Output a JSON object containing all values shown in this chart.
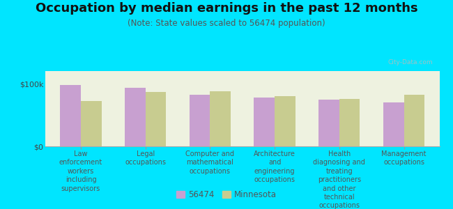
{
  "title": "Occupation by median earnings in the past 12 months",
  "subtitle": "(Note: State values scaled to 56474 population)",
  "categories": [
    "Law\nenforcement\nworkers\nincluding\nsupervisors",
    "Legal\noccupations",
    "Computer and\nmathematical\noccupations",
    "Architecture\nand\nengineering\noccupations",
    "Health\ndiagnosing and\ntreating\npractitioners\nand other\ntechnical\noccupations",
    "Management\noccupations"
  ],
  "values_56474": [
    98000,
    93000,
    82000,
    78000,
    74000,
    70000
  ],
  "values_minnesota": [
    72000,
    87000,
    88000,
    80000,
    76000,
    82000
  ],
  "color_56474": "#c8a0d0",
  "color_minnesota": "#c8cc90",
  "background_outer": "#00e5ff",
  "background_plot": "#eef2e0",
  "ytick_labels": [
    "$0",
    "$100k"
  ],
  "ymax": 120000,
  "legend_label_1": "56474",
  "legend_label_2": "Minnesota",
  "title_fontsize": 13,
  "subtitle_fontsize": 8.5,
  "xlabel_fontsize": 7.0,
  "ylabel_fontsize": 8,
  "legend_fontsize": 8.5
}
